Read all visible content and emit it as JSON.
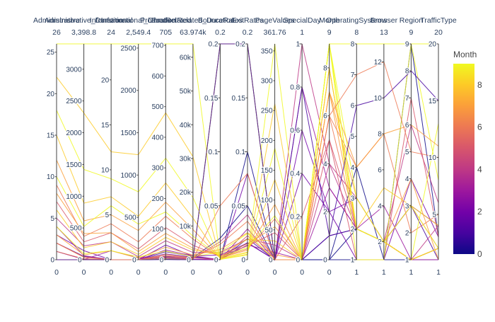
{
  "chart_data": {
    "type": "parallel_coordinates",
    "title": "",
    "color_dimension": "Month",
    "colorbar": {
      "title": "Month",
      "range": [
        0,
        9
      ],
      "ticks": [
        0,
        2,
        4,
        6,
        8
      ],
      "colorscale": [
        "#0d0887",
        "#46039f",
        "#7201a8",
        "#9c179e",
        "#bd3786",
        "#d8576b",
        "#ed7953",
        "#fb9f3a",
        "#fdca26",
        "#f0f921"
      ]
    },
    "dimensions": [
      {
        "label": "Administrative",
        "range": [
          0,
          26
        ],
        "max_label": "26",
        "min_label": "0",
        "ticks": [
          {
            "v": 0,
            "t": "0"
          },
          {
            "v": 5,
            "t": "5"
          },
          {
            "v": 10,
            "t": "10"
          },
          {
            "v": 15,
            "t": "15"
          },
          {
            "v": 20,
            "t": "20"
          },
          {
            "v": 25,
            "t": "25"
          }
        ]
      },
      {
        "label": "Administrative_Duration",
        "range": [
          0,
          3398.8
        ],
        "max_label": "3,398.8",
        "min_label": "0",
        "ticks": [
          {
            "v": 0,
            "t": "0"
          },
          {
            "v": 500,
            "t": "500"
          },
          {
            "v": 1000,
            "t": "1000"
          },
          {
            "v": 1500,
            "t": "1500"
          },
          {
            "v": 2000,
            "t": "2000"
          },
          {
            "v": 2500,
            "t": "2500"
          },
          {
            "v": 3000,
            "t": "3000"
          }
        ]
      },
      {
        "label": "Informational",
        "range": [
          0,
          24
        ],
        "max_label": "24",
        "min_label": "0",
        "ticks": [
          {
            "v": 0,
            "t": "0"
          },
          {
            "v": 5,
            "t": "5"
          },
          {
            "v": 10,
            "t": "10"
          },
          {
            "v": 15,
            "t": "15"
          },
          {
            "v": 20,
            "t": "20"
          }
        ]
      },
      {
        "label": "Informational_Duration",
        "range": [
          0,
          2549.4
        ],
        "max_label": "2,549.4",
        "min_label": "0",
        "ticks": [
          {
            "v": 0,
            "t": "0"
          },
          {
            "v": 500,
            "t": "500"
          },
          {
            "v": 1000,
            "t": "1000"
          },
          {
            "v": 1500,
            "t": "1500"
          },
          {
            "v": 2000,
            "t": "2000"
          },
          {
            "v": 2500,
            "t": "2500"
          }
        ]
      },
      {
        "label": "ProductRelated",
        "range": [
          0,
          705
        ],
        "max_label": "705",
        "min_label": "0",
        "ticks": [
          {
            "v": 0,
            "t": "0"
          },
          {
            "v": 100,
            "t": "100"
          },
          {
            "v": 200,
            "t": "200"
          },
          {
            "v": 300,
            "t": "300"
          },
          {
            "v": 400,
            "t": "400"
          },
          {
            "v": 500,
            "t": "500"
          },
          {
            "v": 600,
            "t": "600"
          },
          {
            "v": 700,
            "t": "700"
          }
        ]
      },
      {
        "label": "ProductRelated_Duration",
        "range": [
          0,
          63974
        ],
        "max_label": "63.974k",
        "min_label": "0",
        "ticks": [
          {
            "v": 0,
            "t": "0"
          },
          {
            "v": 10000,
            "t": "10k"
          },
          {
            "v": 20000,
            "t": "20k"
          },
          {
            "v": 30000,
            "t": "30k"
          },
          {
            "v": 40000,
            "t": "40k"
          },
          {
            "v": 50000,
            "t": "50k"
          },
          {
            "v": 60000,
            "t": "60k"
          }
        ]
      },
      {
        "label": "BounceRates",
        "range": [
          0,
          0.2
        ],
        "max_label": "0.2",
        "min_label": "0",
        "ticks": [
          {
            "v": 0,
            "t": "0"
          },
          {
            "v": 0.05,
            "t": "0.05"
          },
          {
            "v": 0.1,
            "t": "0.1"
          },
          {
            "v": 0.15,
            "t": "0.15"
          },
          {
            "v": 0.2,
            "t": "0.2"
          }
        ]
      },
      {
        "label": "ExitRates",
        "range": [
          0,
          0.2
        ],
        "max_label": "0.2",
        "min_label": "0",
        "ticks": [
          {
            "v": 0,
            "t": "0"
          },
          {
            "v": 0.05,
            "t": "0.05"
          },
          {
            "v": 0.1,
            "t": "0.1"
          },
          {
            "v": 0.15,
            "t": "0.15"
          },
          {
            "v": 0.2,
            "t": "0.2"
          }
        ]
      },
      {
        "label": "PageValues",
        "range": [
          0,
          361.76
        ],
        "max_label": "361.76",
        "min_label": "0",
        "ticks": [
          {
            "v": 0,
            "t": "0"
          },
          {
            "v": 50,
            "t": "50"
          },
          {
            "v": 100,
            "t": "100"
          },
          {
            "v": 150,
            "t": "150"
          },
          {
            "v": 200,
            "t": "200"
          },
          {
            "v": 250,
            "t": "250"
          },
          {
            "v": 300,
            "t": "300"
          },
          {
            "v": 350,
            "t": "350"
          }
        ]
      },
      {
        "label": "SpecialDay",
        "range": [
          0,
          1
        ],
        "max_label": "1",
        "min_label": "0",
        "ticks": [
          {
            "v": 0,
            "t": "0"
          },
          {
            "v": 0.2,
            "t": "0.2"
          },
          {
            "v": 0.4,
            "t": "0.4"
          },
          {
            "v": 0.6,
            "t": "0.6"
          },
          {
            "v": 0.8,
            "t": "0.8"
          },
          {
            "v": 1,
            "t": "1"
          }
        ]
      },
      {
        "label": "Month",
        "range": [
          0,
          9
        ],
        "max_label": "9",
        "min_label": "0",
        "ticks": [
          {
            "v": 0,
            "t": "0"
          },
          {
            "v": 2,
            "t": "2"
          },
          {
            "v": 4,
            "t": "4"
          },
          {
            "v": 6,
            "t": "6"
          },
          {
            "v": 8,
            "t": "8"
          }
        ]
      },
      {
        "label": "OperatingSystems",
        "range": [
          1,
          8
        ],
        "max_label": "8",
        "min_label": "1",
        "ticks": [
          {
            "v": 1,
            "t": "1"
          },
          {
            "v": 2,
            "t": "2"
          },
          {
            "v": 3,
            "t": "3"
          },
          {
            "v": 4,
            "t": "4"
          },
          {
            "v": 5,
            "t": "5"
          },
          {
            "v": 6,
            "t": "6"
          },
          {
            "v": 7,
            "t": "7"
          },
          {
            "v": 8,
            "t": "8"
          }
        ]
      },
      {
        "label": "Browser",
        "range": [
          1,
          13
        ],
        "max_label": "13",
        "min_label": "1",
        "ticks": [
          {
            "v": 2,
            "t": "2"
          },
          {
            "v": 4,
            "t": "4"
          },
          {
            "v": 6,
            "t": "6"
          },
          {
            "v": 8,
            "t": "8"
          },
          {
            "v": 10,
            "t": "10"
          },
          {
            "v": 12,
            "t": "12"
          }
        ]
      },
      {
        "label": "Region",
        "range": [
          1,
          9
        ],
        "max_label": "9",
        "min_label": "1",
        "ticks": [
          {
            "v": 1,
            "t": "1"
          },
          {
            "v": 2,
            "t": "2"
          },
          {
            "v": 3,
            "t": "3"
          },
          {
            "v": 4,
            "t": "4"
          },
          {
            "v": 5,
            "t": "5"
          },
          {
            "v": 6,
            "t": "6"
          },
          {
            "v": 7,
            "t": "7"
          },
          {
            "v": 8,
            "t": "8"
          },
          {
            "v": 9,
            "t": "9"
          }
        ]
      },
      {
        "label": "TrafficType",
        "range": [
          1,
          20
        ],
        "max_label": "20",
        "min_label": "1",
        "ticks": [
          {
            "v": 5,
            "t": "5"
          },
          {
            "v": 10,
            "t": "10"
          },
          {
            "v": 15,
            "t": "15"
          },
          {
            "v": 20,
            "t": "20"
          }
        ]
      }
    ],
    "records": [
      [
        0,
        0,
        0,
        0,
        1,
        0,
        0.2,
        0.2,
        0,
        0,
        0,
        1,
        1,
        1,
        1
      ],
      [
        0,
        0,
        0,
        0,
        2,
        64,
        0,
        0.1,
        0,
        0,
        0,
        2,
        2,
        1,
        2
      ],
      [
        0,
        0,
        0,
        0,
        10,
        627.5,
        0.02,
        0.05,
        0,
        0,
        0,
        4,
        1,
        9,
        3
      ],
      [
        2,
        53,
        0,
        0,
        19,
        738,
        0,
        0.0158,
        0,
        0,
        1,
        2,
        2,
        1,
        2
      ],
      [
        1,
        9,
        0,
        0,
        26,
        1016,
        0,
        0.0196,
        0,
        0,
        1,
        2,
        2,
        3,
        1
      ],
      [
        3,
        142.5,
        0,
        0,
        48,
        1052.3,
        0.0044,
        0.0154,
        0,
        0.4,
        2,
        1,
        1,
        4,
        3
      ],
      [
        0,
        0,
        0,
        0,
        5,
        82,
        0,
        0.08,
        0,
        0.6,
        2,
        3,
        2,
        3,
        4
      ],
      [
        4,
        64.6,
        0,
        0,
        32,
        1135.4,
        0,
        0.0138,
        12.3,
        0,
        3,
        2,
        2,
        1,
        2
      ],
      [
        1,
        6,
        1,
        24,
        7,
        194.1,
        0,
        0.0286,
        0,
        0.8,
        3,
        2,
        4,
        1,
        1
      ],
      [
        5,
        218,
        2,
        36,
        62,
        2145.2,
        0.0068,
        0.0192,
        24.6,
        0,
        4,
        2,
        2,
        1,
        4
      ],
      [
        0,
        0,
        0,
        0,
        12,
        379,
        0.0167,
        0.0417,
        0,
        1,
        4,
        3,
        2,
        6,
        6
      ],
      [
        7,
        281,
        3,
        128,
        105,
        4301.5,
        0.0032,
        0.0128,
        45.2,
        0,
        5,
        2,
        2,
        3,
        2
      ],
      [
        2,
        44,
        0,
        0,
        18,
        562.8,
        0,
        0.0222,
        0,
        0.2,
        5,
        1,
        1,
        7,
        3
      ],
      [
        9,
        367.4,
        4,
        210.8,
        142,
        6123.9,
        0.0021,
        0.0101,
        68.4,
        0,
        6,
        2,
        2,
        1,
        2
      ],
      [
        1,
        15,
        0,
        0,
        9,
        210.3,
        0.05,
        0.08,
        0,
        0,
        6,
        4,
        8,
        2,
        5
      ],
      [
        12,
        612.5,
        5,
        344,
        188,
        8934.2,
        0.0018,
        0.0089,
        92.7,
        0,
        7,
        2,
        2,
        1,
        2
      ],
      [
        3,
        76.3,
        1,
        18,
        41,
        1402.9,
        0.0095,
        0.0251,
        8.4,
        0,
        7,
        3,
        2,
        4,
        1
      ],
      [
        15,
        890,
        7,
        512.6,
        251,
        12342.7,
        0.0012,
        0.0071,
        134.5,
        0,
        8,
        2,
        2,
        1,
        2
      ],
      [
        6,
        188.2,
        2,
        62,
        73,
        2861.4,
        0.0054,
        0.0188,
        31.6,
        0,
        8,
        2,
        5,
        3,
        4
      ],
      [
        0,
        0,
        0,
        0,
        3,
        0,
        0.2,
        0.2,
        0,
        0,
        9,
        3,
        2,
        1,
        13
      ],
      [
        18,
        1420.3,
        9,
        801.2,
        332,
        18420.5,
        0.0009,
        0.0064,
        187.2,
        0,
        9,
        2,
        2,
        1,
        2
      ],
      [
        4,
        97,
        1,
        33,
        28,
        944.7,
        0.0071,
        0.0243,
        0,
        0,
        9,
        1,
        1,
        9,
        8
      ],
      [
        22,
        2310.6,
        12,
        1240.5,
        480,
        30512.8,
        0.0006,
        0.0051,
        261.4,
        0,
        8,
        2,
        2,
        1,
        2
      ],
      [
        26,
        3398.8,
        24,
        2549.4,
        705,
        63974,
        0.0002,
        0.0044,
        361.76,
        0,
        9,
        8,
        13,
        9,
        20
      ],
      [
        8,
        412.7,
        3,
        96.2,
        86,
        3422.1,
        0.0037,
        0.0148,
        55.3,
        0,
        7,
        4,
        8,
        6,
        11
      ],
      [
        0,
        0,
        0,
        0,
        1,
        0,
        0.2,
        0.2,
        0,
        0.8,
        1,
        6,
        10,
        8,
        15
      ],
      [
        10,
        523.4,
        6,
        420.5,
        156,
        7011.3,
        0.0025,
        0.0112,
        73.9,
        0,
        9,
        2,
        2,
        3,
        2
      ],
      [
        2,
        38.5,
        0,
        0,
        14,
        455.6,
        0.0143,
        0.0357,
        0,
        0,
        6,
        7,
        12,
        5,
        10
      ]
    ]
  }
}
